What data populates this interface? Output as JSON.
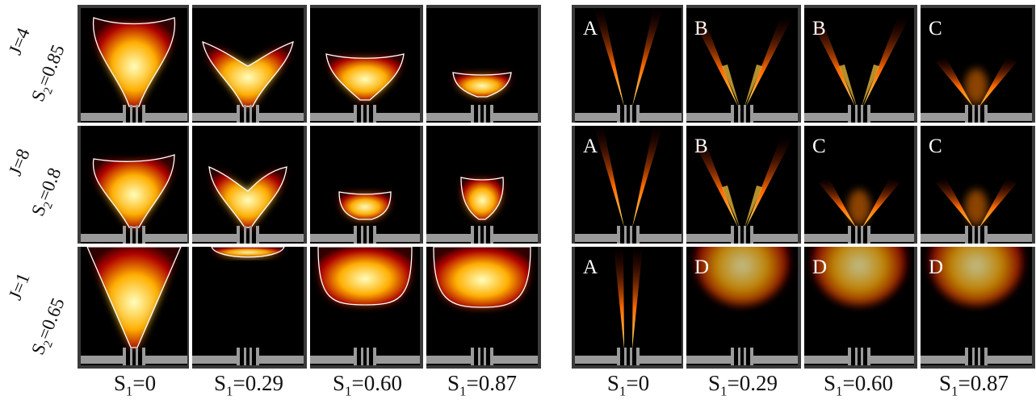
{
  "rows": [
    {
      "j_label": "J=4",
      "s2_label": "S",
      "s2_sub": "2",
      "s2_val": "=0.85"
    },
    {
      "j_label": "J=8",
      "s2_label": "S",
      "s2_sub": "2",
      "s2_val": "=0.8"
    },
    {
      "j_label": "J=1",
      "s2_label": "S",
      "s2_sub": "2",
      "s2_val": "=0.65"
    }
  ],
  "columns": [
    {
      "label": "S",
      "sub": "1",
      "val": "=0"
    },
    {
      "label": "S",
      "sub": "1",
      "val": "=0.29"
    },
    {
      "label": "S",
      "sub": "1",
      "val": "=0.60"
    },
    {
      "label": "S",
      "sub": "1",
      "val": "=0.87"
    }
  ],
  "right_letters": [
    [
      "A",
      "B",
      "B",
      "C"
    ],
    [
      "A",
      "B",
      "C",
      "C"
    ],
    [
      "A",
      "D",
      "D",
      "D"
    ]
  ],
  "colors": {
    "background": "#000000",
    "flame_hot": "#ffffc0",
    "flame_mid": "#ffb000",
    "flame_low": "#b00000",
    "burner_gray": "#9a9a9a",
    "contour": "#ffffff"
  }
}
